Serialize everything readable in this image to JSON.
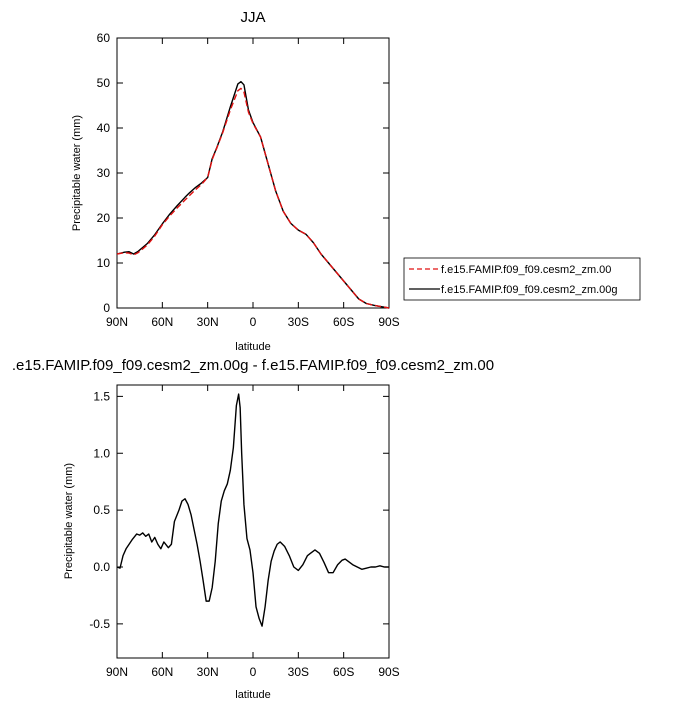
{
  "chart_data": [
    {
      "type": "line",
      "title": "JJA",
      "xlabel": "latitude",
      "ylabel": "Precipitable water (mm)",
      "xlim": [
        90,
        -90
      ],
      "ylim": [
        0,
        60
      ],
      "xticks": [
        90,
        60,
        30,
        0,
        -30,
        -60,
        -90
      ],
      "xtick_labels": [
        "90N",
        "60N",
        "30N",
        "0",
        "30S",
        "60S",
        "90S"
      ],
      "yticks": [
        0,
        10,
        20,
        30,
        40,
        50,
        60
      ],
      "ytick_labels": [
        "0",
        "10",
        "20",
        "30",
        "40",
        "50",
        "60"
      ],
      "legend_position": "right",
      "series": [
        {
          "name": "f.e15.FAMIP.f09_f09.cesm2_zm.00",
          "color": "#e01010",
          "dash": "dashed",
          "x": [
            90,
            85,
            82,
            79,
            76,
            70,
            65,
            60,
            55,
            50,
            45,
            42,
            38,
            34,
            30,
            27,
            24,
            20,
            15,
            10,
            8,
            6,
            3,
            0,
            -5,
            -10,
            -15,
            -20,
            -25,
            -30,
            -35,
            -40,
            -45,
            -50,
            -55,
            -60,
            -65,
            -70,
            -75,
            -80,
            -85,
            -90
          ],
          "y": [
            12.0,
            12.3,
            12.2,
            11.8,
            12.3,
            14.0,
            16.0,
            18.5,
            20.5,
            22.3,
            24.0,
            25.0,
            26.3,
            27.5,
            29.0,
            33.0,
            35.5,
            39.0,
            44.0,
            48.3,
            48.8,
            48.0,
            43.5,
            41.0,
            38.0,
            32.0,
            26.0,
            21.5,
            18.8,
            17.3,
            16.4,
            14.5,
            12.0,
            10.0,
            8.0,
            6.0,
            4.0,
            2.0,
            1.0,
            0.6,
            0.3,
            0.0
          ]
        },
        {
          "name": "f.e15.FAMIP.f09_f09.cesm2_zm.00g",
          "color": "#000000",
          "dash": "solid",
          "x": [
            90,
            85,
            82,
            79,
            76,
            70,
            65,
            60,
            55,
            50,
            45,
            42,
            38,
            34,
            30,
            27,
            24,
            20,
            15,
            10,
            8,
            6,
            3,
            0,
            -5,
            -10,
            -15,
            -20,
            -25,
            -30,
            -35,
            -40,
            -45,
            -50,
            -55,
            -60,
            -65,
            -70,
            -75,
            -80,
            -85,
            -90
          ],
          "y": [
            12.0,
            12.4,
            12.5,
            12.0,
            12.6,
            14.3,
            16.3,
            18.7,
            20.9,
            22.8,
            24.6,
            25.6,
            26.8,
            27.8,
            29.0,
            33.2,
            35.6,
            39.2,
            44.7,
            49.8,
            50.3,
            49.6,
            44.0,
            41.2,
            38.0,
            32.0,
            26.0,
            21.5,
            18.8,
            17.3,
            16.4,
            14.5,
            12.0,
            10.0,
            8.0,
            6.0,
            4.0,
            2.0,
            1.0,
            0.6,
            0.3,
            0.0
          ]
        }
      ]
    },
    {
      "type": "line",
      "title": ".e15.FAMIP.f09_f09.cesm2_zm.00g - f.e15.FAMIP.f09_f09.cesm2_zm.00",
      "xlabel": "latitude",
      "ylabel": "Precipitable water (mm)",
      "xlim": [
        90,
        -90
      ],
      "ylim": [
        -0.8,
        1.6
      ],
      "xticks": [
        90,
        60,
        30,
        0,
        -30,
        -60,
        -90
      ],
      "xtick_labels": [
        "90N",
        "60N",
        "30N",
        "0",
        "30S",
        "60S",
        "90S"
      ],
      "yticks": [
        -0.5,
        0,
        0.5,
        1,
        1.5
      ],
      "ytick_labels": [
        "-0.5",
        "0.0",
        "0.5",
        "1.0",
        "1.5"
      ],
      "series": [
        {
          "color": "#000000",
          "dash": "solid",
          "x": [
            90,
            88,
            86,
            84,
            80,
            77,
            75,
            73,
            71,
            69,
            67,
            65,
            63,
            61,
            59,
            56,
            54,
            52,
            49,
            47,
            45,
            43,
            41,
            39,
            37,
            35,
            33,
            31,
            29,
            27,
            25,
            23,
            21,
            19,
            17,
            15,
            13,
            11,
            9.5,
            8.5,
            7.5,
            6,
            4,
            2,
            0,
            -2,
            -4,
            -6,
            -8,
            -10,
            -12,
            -14,
            -16,
            -18,
            -21,
            -24,
            -27,
            -30,
            -33,
            -36,
            -38,
            -41,
            -44,
            -47,
            -50,
            -53,
            -56,
            -59,
            -61,
            -63,
            -66,
            -69,
            -72,
            -75,
            -78,
            -81,
            -84,
            -87,
            -90
          ],
          "y": [
            0.0,
            -0.01,
            0.1,
            0.16,
            0.24,
            0.29,
            0.28,
            0.3,
            0.27,
            0.29,
            0.22,
            0.26,
            0.2,
            0.16,
            0.22,
            0.17,
            0.2,
            0.4,
            0.5,
            0.58,
            0.6,
            0.55,
            0.46,
            0.33,
            0.2,
            0.05,
            -0.12,
            -0.3,
            -0.3,
            -0.18,
            0.05,
            0.38,
            0.58,
            0.67,
            0.73,
            0.85,
            1.05,
            1.42,
            1.52,
            1.4,
            1.0,
            0.55,
            0.25,
            0.15,
            -0.05,
            -0.35,
            -0.45,
            -0.52,
            -0.35,
            -0.12,
            0.05,
            0.14,
            0.2,
            0.22,
            0.18,
            0.1,
            0.0,
            -0.03,
            0.02,
            0.1,
            0.12,
            0.15,
            0.12,
            0.04,
            -0.05,
            -0.05,
            0.02,
            0.06,
            0.07,
            0.05,
            0.02,
            0.0,
            -0.02,
            -0.01,
            0.0,
            0.0,
            0.01,
            0.0,
            0.0
          ]
        }
      ]
    }
  ]
}
